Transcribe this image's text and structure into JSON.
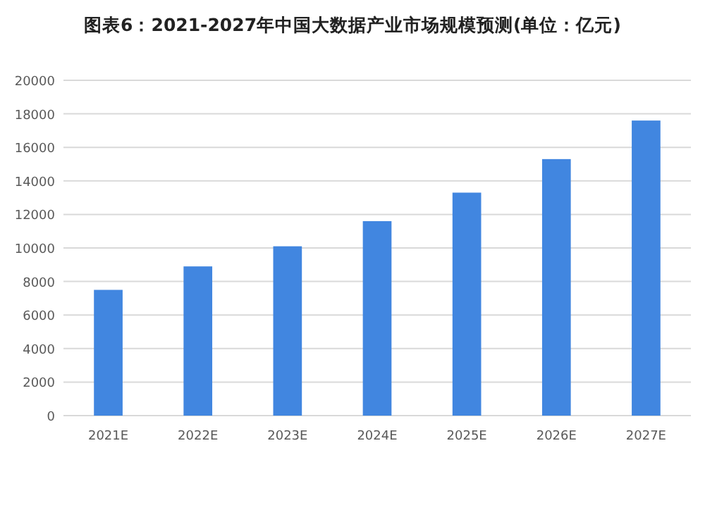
{
  "chart_data": {
    "type": "bar",
    "title": "图表6：2021-2027年中国大数据产业市场规模预测(单位：亿元)",
    "categories": [
      "2021E",
      "2022E",
      "2023E",
      "2024E",
      "2025E",
      "2026E",
      "2027E"
    ],
    "values": [
      7500,
      8900,
      10100,
      11600,
      13300,
      15300,
      17600
    ],
    "color": "#4186e0",
    "ylim": [
      0,
      20000
    ],
    "yticks": [
      0,
      2000,
      4000,
      6000,
      8000,
      10000,
      12000,
      14000,
      16000,
      18000,
      20000
    ],
    "grid": "y"
  }
}
